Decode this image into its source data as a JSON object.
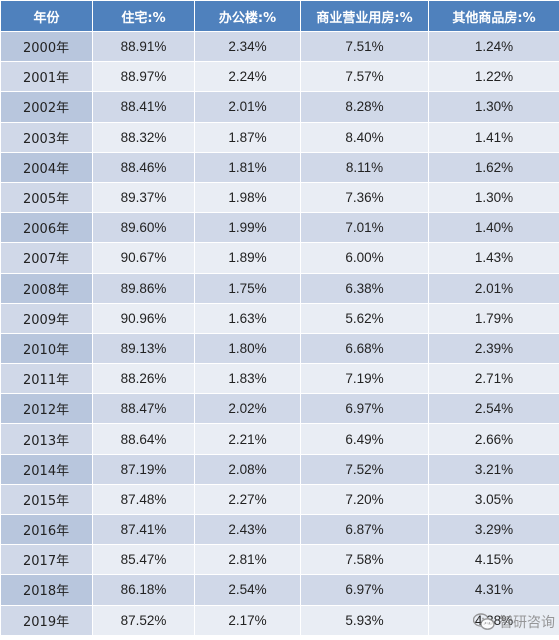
{
  "table": {
    "headers": [
      "年份",
      "住宅:%",
      "办公楼:%",
      "商业营业用房:%",
      "其他商品房:%"
    ],
    "rows": [
      [
        "2000年",
        "88.91%",
        "2.34%",
        "7.51%",
        "1.24%"
      ],
      [
        "2001年",
        "88.97%",
        "2.24%",
        "7.57%",
        "1.22%"
      ],
      [
        "2002年",
        "88.41%",
        "2.01%",
        "8.28%",
        "1.30%"
      ],
      [
        "2003年",
        "88.32%",
        "1.87%",
        "8.40%",
        "1.41%"
      ],
      [
        "2004年",
        "88.46%",
        "1.81%",
        "8.11%",
        "1.62%"
      ],
      [
        "2005年",
        "89.37%",
        "1.98%",
        "7.36%",
        "1.30%"
      ],
      [
        "2006年",
        "89.60%",
        "1.99%",
        "7.01%",
        "1.40%"
      ],
      [
        "2007年",
        "90.67%",
        "1.89%",
        "6.00%",
        "1.43%"
      ],
      [
        "2008年",
        "89.86%",
        "1.75%",
        "6.38%",
        "2.01%"
      ],
      [
        "2009年",
        "90.96%",
        "1.63%",
        "5.62%",
        "1.79%"
      ],
      [
        "2010年",
        "89.13%",
        "1.80%",
        "6.68%",
        "2.39%"
      ],
      [
        "2011年",
        "88.26%",
        "1.83%",
        "7.19%",
        "2.71%"
      ],
      [
        "2012年",
        "88.47%",
        "2.02%",
        "6.97%",
        "2.54%"
      ],
      [
        "2013年",
        "88.64%",
        "2.21%",
        "6.49%",
        "2.66%"
      ],
      [
        "2014年",
        "87.19%",
        "2.08%",
        "7.52%",
        "3.21%"
      ],
      [
        "2015年",
        "87.48%",
        "2.27%",
        "7.20%",
        "3.05%"
      ],
      [
        "2016年",
        "87.41%",
        "2.43%",
        "6.87%",
        "3.29%"
      ],
      [
        "2017年",
        "85.47%",
        "2.81%",
        "7.58%",
        "4.15%"
      ],
      [
        "2018年",
        "86.18%",
        "2.54%",
        "6.97%",
        "4.31%"
      ],
      [
        "2019年",
        "87.52%",
        "2.17%",
        "5.93%",
        "4.38%"
      ]
    ]
  },
  "watermark": {
    "text": "智研咨询",
    "icon": "wechat-icon"
  },
  "colors": {
    "header_bg": "#4f81bd",
    "row_odd": "#d0d8e8",
    "row_even": "#e9edf4",
    "year_odd": "#b8c6dd",
    "year_even": "#d0d8e8"
  }
}
